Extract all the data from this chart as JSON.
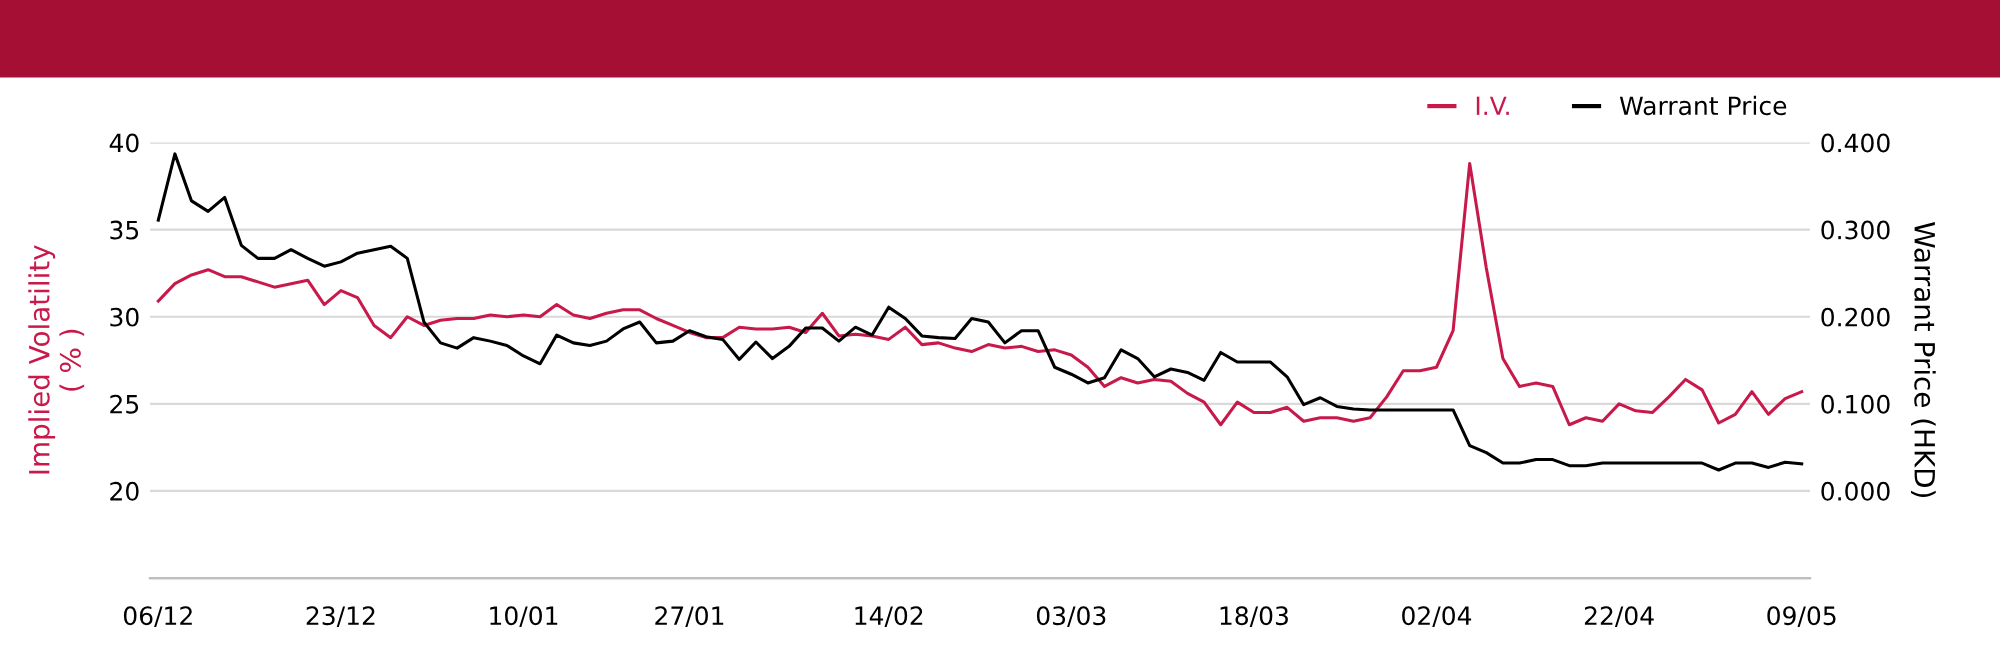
{
  "chart_data": {
    "type": "line",
    "ylabel": "Implied Volatility\n( % )",
    "y2label": "Warrant Price (HKD)",
    "categories": [
      "06/12",
      null,
      null,
      null,
      null,
      null,
      null,
      null,
      null,
      null,
      null,
      "23/12",
      null,
      null,
      null,
      null,
      null,
      null,
      null,
      null,
      null,
      null,
      "10/01",
      null,
      null,
      null,
      null,
      null,
      null,
      null,
      null,
      null,
      "27/01",
      null,
      null,
      null,
      null,
      null,
      null,
      null,
      null,
      null,
      null,
      null,
      "14/02",
      null,
      null,
      null,
      null,
      null,
      null,
      null,
      null,
      null,
      null,
      "03/03",
      null,
      null,
      null,
      null,
      null,
      null,
      null,
      null,
      null,
      null,
      "18/03",
      null,
      null,
      null,
      null,
      null,
      null,
      null,
      null,
      null,
      null,
      "02/04",
      null,
      null,
      null,
      null,
      null,
      null,
      null,
      null,
      null,
      null,
      "22/04",
      null,
      null,
      null,
      null,
      null,
      null,
      null,
      null,
      null,
      null,
      "09/05"
    ],
    "series": [
      {
        "name": "I.V.",
        "color": "#c8194b",
        "values": [
          30.9,
          31.9,
          32.4,
          32.7,
          32.3,
          32.3,
          32.0,
          31.7,
          31.9,
          32.1,
          30.7,
          31.5,
          31.1,
          29.5,
          28.8,
          30.0,
          29.5,
          29.8,
          29.9,
          29.9,
          30.1,
          30.0,
          30.1,
          30.0,
          30.7,
          30.1,
          29.9,
          30.2,
          30.4,
          30.4,
          29.9,
          29.5,
          29.1,
          28.8,
          28.8,
          29.4,
          29.3,
          29.3,
          29.4,
          29.1,
          30.2,
          28.9,
          29.0,
          28.9,
          28.7,
          29.4,
          28.4,
          28.5,
          28.2,
          28.0,
          28.4,
          28.2,
          28.3,
          28.0,
          28.1,
          27.8,
          27.1,
          26.0,
          26.5,
          26.2,
          26.4,
          26.3,
          25.6,
          25.1,
          23.8,
          25.1,
          24.5,
          24.5,
          24.8,
          24.0,
          24.2,
          24.2,
          24.0,
          24.2,
          25.4,
          26.9,
          26.9,
          27.1,
          29.2,
          38.8,
          32.8,
          27.6,
          26.0,
          26.2,
          26.0,
          23.8,
          24.2,
          24.0,
          25.0,
          24.6,
          24.5,
          25.4,
          26.4,
          25.8,
          23.9,
          24.4,
          25.7,
          24.4,
          25.3,
          25.7
        ]
      },
      {
        "name": "Warrant Price",
        "color": "#000000",
        "axis": "y2",
        "values": [
          0.311,
          0.387,
          0.333,
          0.321,
          0.337,
          0.282,
          0.267,
          0.267,
          0.277,
          0.267,
          0.258,
          0.263,
          0.273,
          0.277,
          0.281,
          0.267,
          0.194,
          0.17,
          0.164,
          0.176,
          0.172,
          0.167,
          0.155,
          0.146,
          0.179,
          0.17,
          0.167,
          0.172,
          0.186,
          0.194,
          0.17,
          0.172,
          0.184,
          0.177,
          0.174,
          0.151,
          0.171,
          0.152,
          0.166,
          0.187,
          0.187,
          0.172,
          0.188,
          0.179,
          0.211,
          0.198,
          0.178,
          0.176,
          0.175,
          0.198,
          0.194,
          0.17,
          0.184,
          0.184,
          0.142,
          0.134,
          0.124,
          0.13,
          0.162,
          0.152,
          0.131,
          0.14,
          0.136,
          0.127,
          0.159,
          0.148,
          0.148,
          0.148,
          0.131,
          0.099,
          0.107,
          0.097,
          0.094,
          0.093,
          0.093,
          0.093,
          0.093,
          0.093,
          0.093,
          0.052,
          0.044,
          0.032,
          0.032,
          0.036,
          0.036,
          0.029,
          0.029,
          0.032,
          0.032,
          0.032,
          0.032,
          0.032,
          0.032,
          0.032,
          0.024,
          0.032,
          0.032,
          0.027,
          0.033,
          0.031
        ]
      }
    ],
    "ylim": [
      15,
      40
    ],
    "yticks": [
      20,
      25,
      30,
      35,
      40
    ],
    "y2lim": [
      -0.1,
      0.4
    ],
    "y2ticks": [
      {
        "value": 0,
        "label": "0.000"
      },
      {
        "value": 0.1,
        "label": "0.100"
      },
      {
        "value": 0.2,
        "label": "0.200"
      },
      {
        "value": 0.3,
        "label": "0.300"
      },
      {
        "value": 0.4,
        "label": "0.400"
      }
    ],
    "grid": "y",
    "legend": "top right"
  }
}
